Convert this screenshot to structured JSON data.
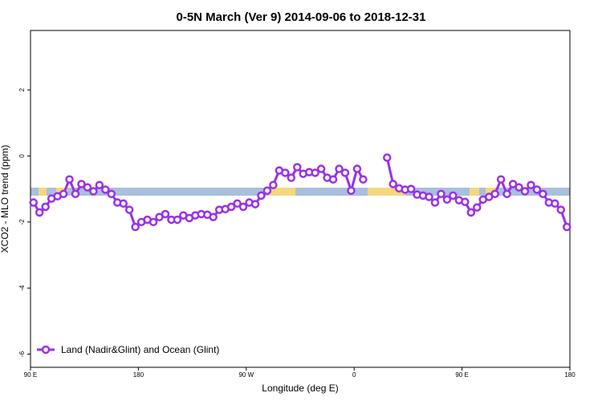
{
  "chart_data": {
    "type": "line",
    "title": "0-5N March (Ver 9)   2014-09-06 to 2018-12-31",
    "x_label": "Longitude (deg E)",
    "y_label": "XCO2 - MLO trend (ppm)",
    "xlim": [
      90,
      540
    ],
    "ylim": [
      -6.4,
      3.8
    ],
    "xticks": [
      {
        "value": 90,
        "label": "90 E"
      },
      {
        "value": 180,
        "label": "180"
      },
      {
        "value": 270,
        "label": "90 W"
      },
      {
        "value": 360,
        "label": "0"
      },
      {
        "value": 450,
        "label": "90 E"
      },
      {
        "value": 540,
        "label": "180"
      }
    ],
    "yticks": [
      2,
      0,
      -2,
      -4,
      -6
    ],
    "legend": "bottom-left",
    "x": [
      92.5,
      97.5,
      102.5,
      107.5,
      112.5,
      117.5,
      122.5,
      127.5,
      132.5,
      137.5,
      142.5,
      147.5,
      152.5,
      157.5,
      162.5,
      167.5,
      172.5,
      177.5,
      182.5,
      187.5,
      192.5,
      197.5,
      202.5,
      207.5,
      212.5,
      217.5,
      222.5,
      227.5,
      232.5,
      237.5,
      242.5,
      247.5,
      252.5,
      257.5,
      262.5,
      267.5,
      272.5,
      277.5,
      282.5,
      287.5,
      292.5,
      297.5,
      302.5,
      307.5,
      312.5,
      317.5,
      322.5,
      327.5,
      332.5,
      337.5,
      342.5,
      347.5,
      352.5,
      357.5,
      362.5,
      367.5,
      372.5,
      377.5,
      382.5,
      387.5,
      392.5,
      397.5,
      402.5,
      407.5,
      412.5,
      417.5,
      422.5,
      427.5,
      432.5,
      437.5,
      442.5,
      447.5,
      452.5,
      457.5,
      462.5,
      467.5,
      472.5,
      477.5,
      482.5,
      487.5,
      492.5,
      497.5,
      502.5,
      507.5,
      512.5,
      517.5,
      522.5,
      527.5,
      532.5,
      537.5
    ],
    "series": [
      {
        "name": "Land (Nadir&Glint) and Ocean (Glint)",
        "color": "#9b30e8",
        "values": [
          -1.41,
          -1.71,
          -1.54,
          -1.29,
          -1.22,
          -1.15,
          -0.71,
          -1.15,
          -0.85,
          -0.95,
          -1.07,
          -0.88,
          -1.02,
          -1.15,
          -1.41,
          -1.44,
          -1.63,
          -2.15,
          -2.0,
          -1.93,
          -2.0,
          -1.85,
          -1.76,
          -1.93,
          -1.93,
          -1.8,
          -1.88,
          -1.8,
          -1.76,
          -1.78,
          -1.85,
          -1.63,
          -1.61,
          -1.54,
          -1.44,
          -1.54,
          -1.41,
          -1.46,
          -1.2,
          -1.05,
          -0.88,
          -0.44,
          -0.51,
          -0.66,
          -0.34,
          -0.54,
          -0.49,
          -0.51,
          -0.39,
          -0.66,
          -0.71,
          -0.39,
          -0.51,
          -1.05,
          -0.39,
          -0.71,
          null,
          null,
          null,
          -0.05,
          -0.85,
          -0.98,
          -1.02,
          -1.0,
          -1.17,
          -1.2,
          -1.24,
          -1.41,
          -1.15,
          -1.32,
          -1.2,
          -1.34,
          -1.39,
          -1.71,
          -1.56,
          -1.32,
          -1.24,
          -1.15,
          -0.71,
          -1.15,
          -0.85,
          -0.95,
          -1.07,
          -0.88,
          -1.02,
          -1.15,
          -1.41,
          -1.44,
          -1.63,
          -2.15
        ]
      }
    ]
  }
}
